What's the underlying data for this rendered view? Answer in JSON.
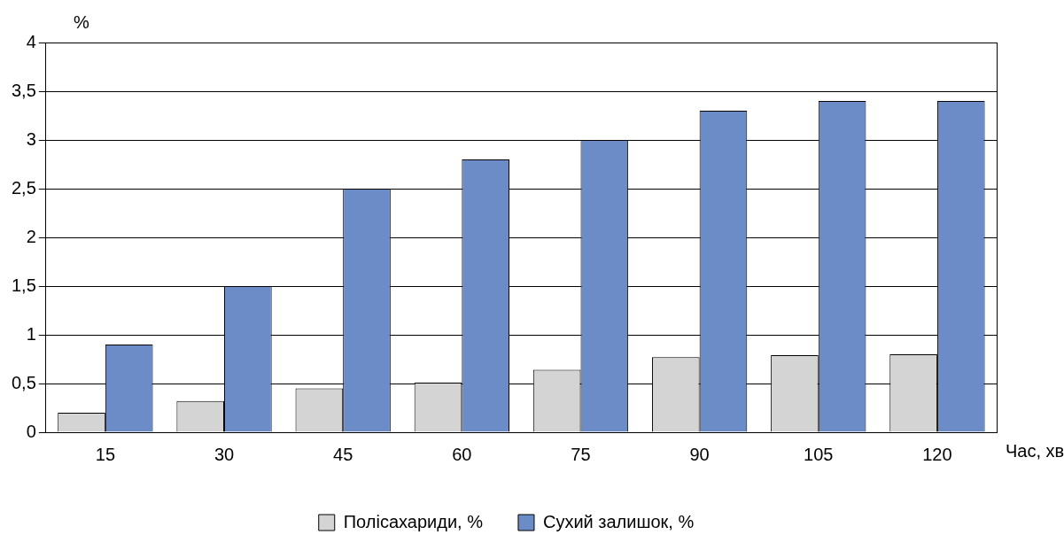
{
  "chart_data": {
    "type": "bar",
    "xlabel": "Час, хв",
    "ylabel": "%",
    "categories": [
      "15",
      "30",
      "45",
      "60",
      "75",
      "90",
      "105",
      "120"
    ],
    "series": [
      {
        "name": "Полісахариди, %",
        "color": "#d4d4d4",
        "values": [
          0.2,
          0.32,
          0.45,
          0.51,
          0.64,
          0.77,
          0.79,
          0.8
        ]
      },
      {
        "name": "Сухий залишок, %",
        "color": "#6b8cc7",
        "values": [
          0.9,
          1.5,
          2.5,
          2.8,
          3.0,
          3.3,
          3.4,
          3.4
        ]
      }
    ],
    "ylim": [
      0,
      4
    ],
    "yticks": [
      0,
      {
        "value": 0.5,
        "label": "0,5"
      },
      1,
      {
        "value": 1.5,
        "label": "1,5"
      },
      2,
      {
        "value": 2.5,
        "label": "2,5"
      },
      3,
      {
        "value": 3.5,
        "label": "3,5"
      },
      4
    ],
    "grid": "y",
    "legend": "bottom"
  }
}
